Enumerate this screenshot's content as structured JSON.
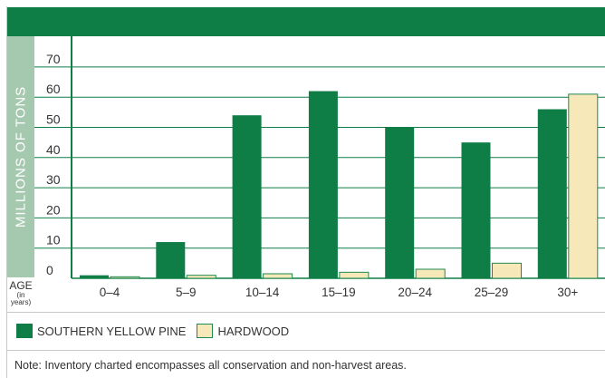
{
  "chart_data": {
    "type": "bar",
    "ylabel": "MILLIONS OF TONS",
    "xlabel": "AGE",
    "xlabel_sub": "(in years)",
    "categories": [
      "0–4",
      "5–9",
      "10–14",
      "15–19",
      "20–24",
      "25–29",
      "30+"
    ],
    "series": [
      {
        "name": "SOUTHERN YELLOW PINE",
        "values": [
          1,
          12,
          54,
          62,
          50,
          45,
          56
        ],
        "color": "#0e7e46"
      },
      {
        "name": "HARDWOOD",
        "values": [
          0.5,
          1,
          1.5,
          2,
          3,
          5,
          61
        ],
        "color": "#f6e8b8"
      }
    ],
    "yticks": [
      0,
      10,
      20,
      30,
      40,
      50,
      60,
      70
    ],
    "ylim": [
      0,
      79
    ],
    "grid": true,
    "legend_position": "bottom-left"
  },
  "note": "Note: Inventory charted encompasses all conservation and non-harvest areas.",
  "colors": {
    "title_bar": "#0e7e46",
    "axis_label_bg": "#a5c9af",
    "gridline": "#0e7e46",
    "hardwood_border": "#1f8a52"
  }
}
